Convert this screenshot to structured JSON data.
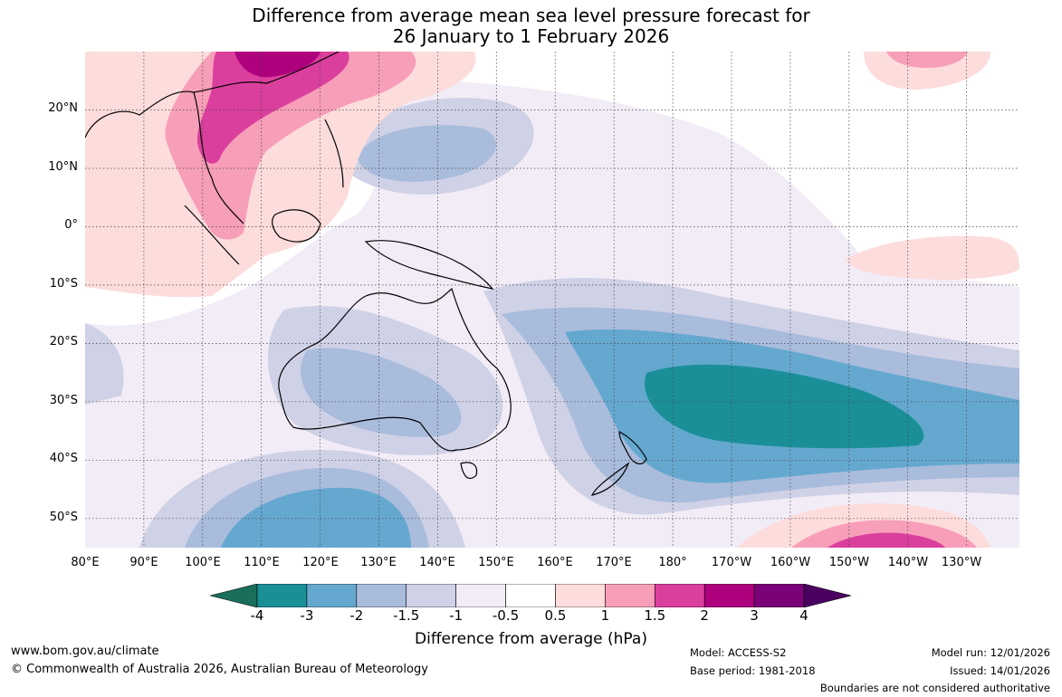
{
  "title": {
    "line1": "Difference from average mean sea level pressure forecast for",
    "line2": "26 January to 1 February 2026"
  },
  "map": {
    "lat_labels": [
      "20°N",
      "10°N",
      "0°",
      "10°S",
      "20°S",
      "30°S",
      "40°S",
      "50°S"
    ],
    "lat_values": [
      20,
      10,
      0,
      -10,
      -20,
      -30,
      -40,
      -50
    ],
    "lon_labels": [
      "80°E",
      "90°E",
      "100°E",
      "110°E",
      "120°E",
      "130°E",
      "140°E",
      "150°E",
      "160°E",
      "170°E",
      "180°",
      "170°W",
      "160°W",
      "150°W",
      "140°W",
      "130°W"
    ],
    "lon_values": [
      80,
      90,
      100,
      110,
      120,
      130,
      140,
      150,
      160,
      170,
      180,
      190,
      200,
      210,
      220,
      230
    ],
    "lon_range": [
      80,
      239
    ],
    "lat_range": [
      -55,
      30
    ]
  },
  "colorbar": {
    "ticks": [
      "-4",
      "-3",
      "-2",
      "-1.5",
      "-1",
      "-0.5",
      "0.5",
      "1",
      "1.5",
      "2",
      "3",
      "4"
    ],
    "colors": [
      "#1a6e5c",
      "#1a8f98",
      "#65a8cf",
      "#a9bcdc",
      "#cfd1e6",
      "#f2ecf6",
      "#ffffff",
      "#fddcdc",
      "#f79eb8",
      "#db3f9d",
      "#ae017e",
      "#7a0177",
      "#4a0060"
    ],
    "label": "Difference from average (hPa)"
  },
  "footer": {
    "website": "www.bom.gov.au/climate",
    "copyright": "© Commonwealth of Australia 2026, Australian Bureau of Meteorology",
    "model": "Model: ACCESS-S2",
    "base_period": "Base period: 1981-2018",
    "model_run": "Model run: 12/01/2026",
    "issued": "Issued: 14/01/2026",
    "disclaimer": "Boundaries are not considered authoritative"
  }
}
